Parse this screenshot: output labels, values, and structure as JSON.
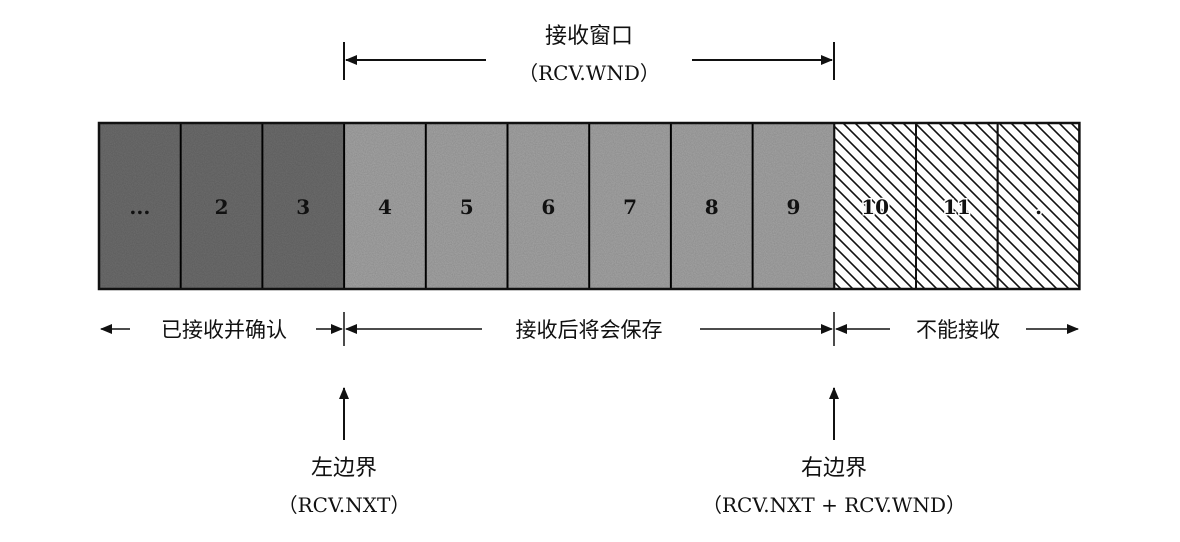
{
  "window": {
    "title": "接收窗口",
    "subtitle": "（RCV.WND）"
  },
  "cells": [
    {
      "label": "...",
      "state": "acked"
    },
    {
      "label": "2",
      "state": "acked"
    },
    {
      "label": "3",
      "state": "acked"
    },
    {
      "label": "4",
      "state": "window"
    },
    {
      "label": "5",
      "state": "window"
    },
    {
      "label": "6",
      "state": "window"
    },
    {
      "label": "7",
      "state": "window"
    },
    {
      "label": "8",
      "state": "window"
    },
    {
      "label": "9",
      "state": "window"
    },
    {
      "label": "10",
      "state": "blocked"
    },
    {
      "label": "11",
      "state": "blocked"
    },
    {
      "label": ".",
      "state": "blocked"
    }
  ],
  "regions": {
    "acked": "已接收并确认",
    "window": "接收后将会保存",
    "blocked": "不能接收"
  },
  "left_edge": {
    "title": "左边界",
    "subtitle": "（RCV.NXT）"
  },
  "right_edge": {
    "title": "右边界",
    "subtitle": "（RCV.NXT + RCV.WND）"
  },
  "colors": {
    "acked": "#6e6e6e",
    "window": "#a6a6a6",
    "blocked_bg": "#ffffff",
    "line": "#111111"
  }
}
